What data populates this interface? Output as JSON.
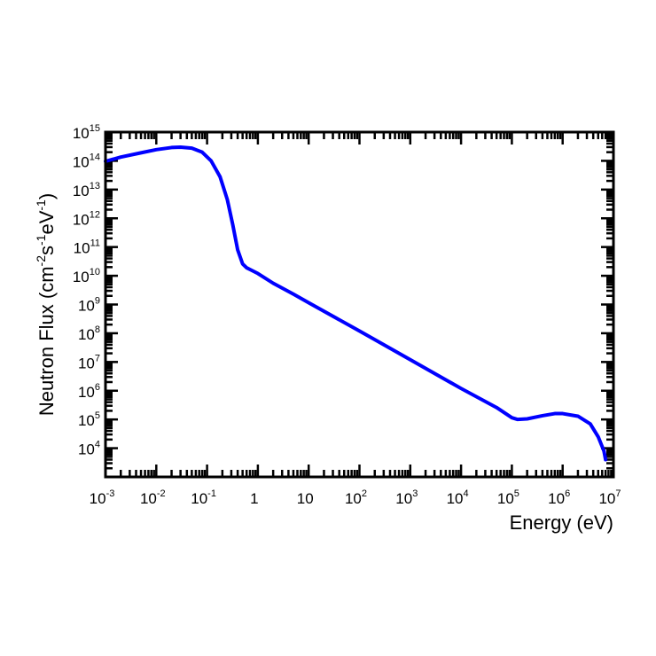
{
  "chart_data": {
    "type": "line",
    "title": "",
    "xlabel": "Energy (eV)",
    "ylabel": "Neutron Flux (cm",
    "ylabel_parts": [
      "Neutron Flux (cm",
      "-2",
      "s",
      "-1",
      "eV",
      "-1",
      ")"
    ],
    "x_scale": "log",
    "y_scale": "log",
    "xlim": [
      0.001,
      10000000
    ],
    "ylim": [
      1000,
      1000000000000000
    ],
    "grid": false,
    "x_ticks": [
      {
        "value": 0.001,
        "base": "10",
        "exp": "-3"
      },
      {
        "value": 0.01,
        "base": "10",
        "exp": "-2"
      },
      {
        "value": 0.1,
        "base": "10",
        "exp": "-1"
      },
      {
        "value": 1,
        "base": "1",
        "exp": ""
      },
      {
        "value": 10,
        "base": "10",
        "exp": ""
      },
      {
        "value": 100,
        "base": "10",
        "exp": "2"
      },
      {
        "value": 1000,
        "base": "10",
        "exp": "3"
      },
      {
        "value": 10000,
        "base": "10",
        "exp": "4"
      },
      {
        "value": 100000,
        "base": "10",
        "exp": "5"
      },
      {
        "value": 1000000,
        "base": "10",
        "exp": "6"
      },
      {
        "value": 10000000,
        "base": "10",
        "exp": "7"
      }
    ],
    "y_ticks": [
      {
        "value": 10000,
        "base": "10",
        "exp": "4"
      },
      {
        "value": 100000,
        "base": "10",
        "exp": "5"
      },
      {
        "value": 1000000,
        "base": "10",
        "exp": "6"
      },
      {
        "value": 10000000,
        "base": "10",
        "exp": "7"
      },
      {
        "value": 100000000,
        "base": "10",
        "exp": "8"
      },
      {
        "value": 1000000000,
        "base": "10",
        "exp": "9"
      },
      {
        "value": 10000000000,
        "base": "10",
        "exp": "10"
      },
      {
        "value": 100000000000,
        "base": "10",
        "exp": "11"
      },
      {
        "value": 1000000000000,
        "base": "10",
        "exp": "12"
      },
      {
        "value": 10000000000000,
        "base": "10",
        "exp": "13"
      },
      {
        "value": 100000000000000,
        "base": "10",
        "exp": "14"
      },
      {
        "value": 1000000000000000,
        "base": "10",
        "exp": "15"
      }
    ],
    "series": [
      {
        "color": "#0000ff",
        "points": [
          [
            0.001,
            96000000000000.0
          ],
          [
            0.002,
            135000000000000.0
          ],
          [
            0.005,
            190000000000000.0
          ],
          [
            0.01,
            245000000000000.0
          ],
          [
            0.02,
            290000000000000.0
          ],
          [
            0.03,
            300000000000000.0
          ],
          [
            0.05,
            275000000000000.0
          ],
          [
            0.08,
            200000000000000.0
          ],
          [
            0.12,
            100000000000000.0
          ],
          [
            0.18,
            28000000000000.0
          ],
          [
            0.25,
            4500000000000.0
          ],
          [
            0.32,
            600000000000.0
          ],
          [
            0.4,
            80000000000.0
          ],
          [
            0.5,
            26000000000.0
          ],
          [
            0.6,
            19000000000.0
          ],
          [
            0.7,
            16500000000.0
          ],
          [
            1,
            12000000000.0
          ],
          [
            2,
            5500000000.0
          ],
          [
            5,
            2300000000.0
          ],
          [
            10,
            1150000000.0
          ],
          [
            100,
            120000000.0
          ],
          [
            1000,
            12000000.0
          ],
          [
            10000,
            1200000.0
          ],
          [
            50000,
            260000.0
          ],
          [
            100000,
            115000.0
          ],
          [
            130000,
            100000.0
          ],
          [
            200000,
            105000.0
          ],
          [
            400000,
            135000.0
          ],
          [
            700000,
            160000.0
          ],
          [
            1000000,
            160000.0
          ],
          [
            2000000,
            130000.0
          ],
          [
            3500000,
            70000.0
          ],
          [
            5000000,
            25000.0
          ],
          [
            6500000,
            8000.0
          ],
          [
            7000000,
            4000.0
          ]
        ]
      }
    ]
  }
}
